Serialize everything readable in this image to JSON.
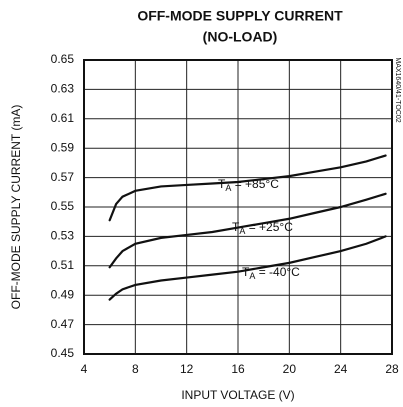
{
  "chart_data": {
    "type": "line",
    "title": [
      "OFF-MODE SUPPLY CURRENT",
      "(NO-LOAD)"
    ],
    "x_label": "INPUT VOLTAGE (V)",
    "y_label": "OFF-MODE SUPPLY CURRENT (mA)",
    "side_note": "MAX1640/41-TOC02",
    "x": [
      6,
      6.5,
      7,
      8,
      10,
      12,
      14,
      16,
      18,
      20,
      22,
      24,
      26,
      27.5
    ],
    "series": [
      {
        "label": {
          "main": "T",
          "sub": "A",
          "rest": " = +85°C"
        },
        "color": "#111111",
        "values": [
          0.541,
          0.552,
          0.557,
          0.561,
          0.564,
          0.565,
          0.566,
          0.567,
          0.569,
          0.571,
          0.574,
          0.577,
          0.581,
          0.585
        ]
      },
      {
        "label": {
          "main": "T",
          "sub": "A",
          "rest": " = +25°C"
        },
        "color": "#111111",
        "values": [
          0.509,
          0.515,
          0.52,
          0.525,
          0.529,
          0.531,
          0.533,
          0.536,
          0.539,
          0.542,
          0.546,
          0.55,
          0.555,
          0.559
        ]
      },
      {
        "label": {
          "main": "T",
          "sub": "A",
          "rest": " = -40°C"
        },
        "color": "#111111",
        "values": [
          0.487,
          0.491,
          0.494,
          0.497,
          0.5,
          0.502,
          0.504,
          0.506,
          0.509,
          0.512,
          0.516,
          0.52,
          0.525,
          0.53
        ]
      }
    ],
    "xlim": [
      4,
      28
    ],
    "xticks": [
      4,
      8,
      12,
      16,
      20,
      24,
      28
    ],
    "ylim": [
      0.45,
      0.65
    ],
    "yticks": [
      0.45,
      0.47,
      0.49,
      0.51,
      0.53,
      0.55,
      0.57,
      0.59,
      0.61,
      0.63,
      0.65
    ],
    "grid": true
  }
}
